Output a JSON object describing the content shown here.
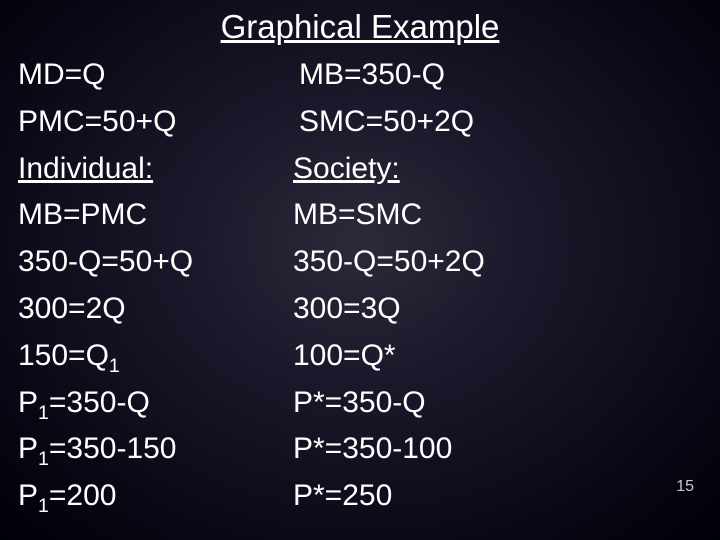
{
  "title": "Graphical Example",
  "left": {
    "l1": "MD=Q",
    "l2": "PMC=50+Q",
    "l3": "Individual:",
    "l4": "MB=PMC",
    "l5": "350-Q=50+Q",
    "l6": "300=2Q",
    "l7a": "150=Q",
    "l7b": "1",
    "l8a": "P",
    "l8b": "1",
    "l8c": "=350-Q",
    "l9a": "P",
    "l9b": "1",
    "l9c": "=350-150",
    "l10a": "P",
    "l10b": "1",
    "l10c": "=200"
  },
  "right": {
    "r1": "MB=350-Q",
    "r2": "SMC=50+2Q",
    "r3": "Society:",
    "r4": "MB=SMC",
    "r5": "350-Q=50+2Q",
    "r6": "300=3Q",
    "r7": "100=Q*",
    "r8": "P*=350-Q",
    "r9": "P*=350-100",
    "r10": "P*=250"
  },
  "page_number": "15",
  "colors": {
    "text": "#ffffff",
    "page_num": "#c8c8c8",
    "bg_center": "#2a2a3a",
    "bg_edge": "#000008"
  },
  "typography": {
    "title_fontsize": 33,
    "body_fontsize": 30,
    "pagenum_fontsize": 16,
    "font_family": "Arial"
  }
}
